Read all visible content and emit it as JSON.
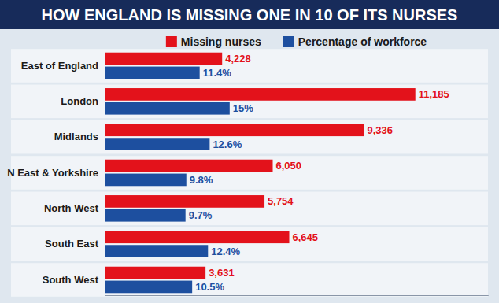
{
  "chart_data": {
    "type": "bar",
    "title": "HOW ENGLAND IS MISSING ONE IN 10 OF ITS NURSES",
    "orientation": "horizontal",
    "categories": [
      "East of England",
      "London",
      "Midlands",
      "N East & Yorkshire",
      "North West",
      "South East",
      "South West"
    ],
    "series": [
      {
        "name": "Missing nurses",
        "color": "#e3121b",
        "values": [
          4228,
          11185,
          9336,
          6050,
          5754,
          6645,
          3631
        ],
        "value_labels": [
          "4,228",
          "11,185",
          "9,336",
          "6,050",
          "5,754",
          "6,645",
          "3,631"
        ]
      },
      {
        "name": "Percentage of workforce",
        "color": "#1d4f9f",
        "axis": "y2",
        "values": [
          11.4,
          15,
          12.6,
          9.8,
          9.7,
          12.4,
          10.5
        ],
        "value_labels": [
          "11.4%",
          "15%",
          "12.6%",
          "9.8%",
          "9.7%",
          "12.4%",
          "10.5%"
        ]
      }
    ],
    "ylim": [
      0,
      13800
    ],
    "y2lim": [
      0,
      46
    ],
    "data_labels": true,
    "legend": "top",
    "tick_labels": false,
    "grid": false
  }
}
